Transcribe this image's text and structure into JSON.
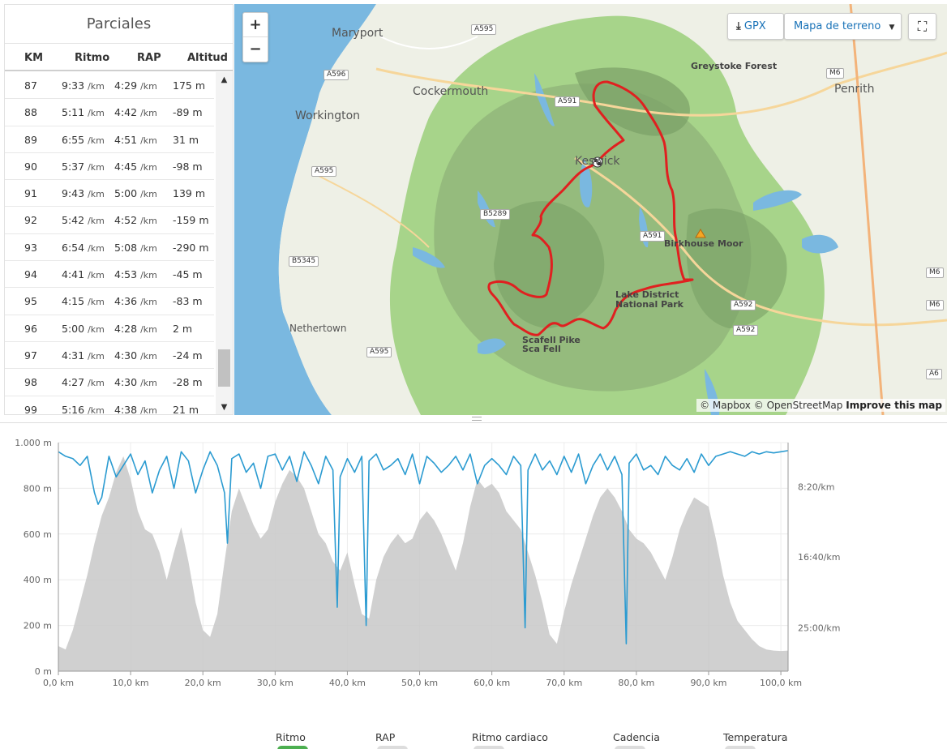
{
  "splits": {
    "title": "Parciales",
    "headers": {
      "km": "KM",
      "pace": "Ritmo",
      "gap": "RAP",
      "elev": "Altitud"
    },
    "pace_unit": "/km",
    "rows": [
      {
        "km": "87",
        "pace": "9:33",
        "gap": "4:29",
        "elev": "175 m"
      },
      {
        "km": "88",
        "pace": "5:11",
        "gap": "4:42",
        "elev": "-89 m"
      },
      {
        "km": "89",
        "pace": "6:55",
        "gap": "4:51",
        "elev": "31 m"
      },
      {
        "km": "90",
        "pace": "5:37",
        "gap": "4:45",
        "elev": "-98 m"
      },
      {
        "km": "91",
        "pace": "9:43",
        "gap": "5:00",
        "elev": "139 m"
      },
      {
        "km": "92",
        "pace": "5:42",
        "gap": "4:52",
        "elev": "-159 m"
      },
      {
        "km": "93",
        "pace": "6:54",
        "gap": "5:08",
        "elev": "-290 m"
      },
      {
        "km": "94",
        "pace": "4:41",
        "gap": "4:53",
        "elev": "-45 m"
      },
      {
        "km": "95",
        "pace": "4:15",
        "gap": "4:36",
        "elev": "-83 m"
      },
      {
        "km": "96",
        "pace": "5:00",
        "gap": "4:28",
        "elev": "2 m"
      },
      {
        "km": "97",
        "pace": "4:31",
        "gap": "4:30",
        "elev": "-24 m"
      },
      {
        "km": "98",
        "pace": "4:27",
        "gap": "4:30",
        "elev": "-28 m"
      },
      {
        "km": "99",
        "pace": "5:16",
        "gap": "4:38",
        "elev": "21 m"
      }
    ]
  },
  "map": {
    "controls": {
      "zoom_in": "+",
      "zoom_out": "−",
      "gpx": "GPX",
      "terrain": "Mapa de terreno",
      "fullscreen": "⛶"
    },
    "places": {
      "maryport": "Maryport",
      "cockermouth": "Cockermouth",
      "workington": "Workington",
      "penrith": "Penrith",
      "keswick": "Keswick",
      "nethertown": "Nethertown",
      "greystoke": "Greystoke Forest",
      "birkhouse": "Birkhouse Moor",
      "lake_district": "Lake District\nNational Park",
      "scafell": "Scafell Pike\nSca Fell"
    },
    "roads": [
      "A595",
      "A596",
      "A591",
      "A595",
      "B5289",
      "A591",
      "B5345",
      "A595",
      "A592",
      "A592",
      "M6",
      "M6",
      "M6",
      "A6"
    ],
    "attribution": {
      "mapbox": "© Mapbox",
      "osm": "© OpenStreetMap",
      "improve": "Improve this map"
    }
  },
  "chart_data": {
    "type": "area",
    "x_unit": "km",
    "xlim": [
      0,
      101
    ],
    "x_ticks": [
      "0,0 km",
      "10,0 km",
      "20,0 km",
      "30,0 km",
      "40,0 km",
      "50,0 km",
      "60,0 km",
      "70,0 km",
      "80,0 km",
      "90,0 km",
      "100,0 km"
    ],
    "y_left_ticks": [
      "0 m",
      "200 m",
      "400 m",
      "600 m",
      "800 m",
      "1.000 m"
    ],
    "ylim": [
      0,
      1000
    ],
    "y_right_ticks": [
      "8:20/km",
      "16:40/km",
      "25:00/km"
    ],
    "series": [
      {
        "name": "Altitud",
        "color": "#c8c8c8",
        "x": [
          0,
          1,
          2,
          3,
          4,
          5,
          6,
          7,
          8,
          9,
          10,
          11,
          12,
          13,
          14,
          15,
          16,
          17,
          18,
          19,
          20,
          21,
          22,
          23,
          24,
          25,
          26,
          27,
          28,
          29,
          30,
          31,
          32,
          33,
          34,
          35,
          36,
          37,
          38,
          39,
          40,
          41,
          42,
          43,
          44,
          45,
          46,
          47,
          48,
          49,
          50,
          51,
          52,
          53,
          54,
          55,
          56,
          57,
          58,
          59,
          60,
          61,
          62,
          63,
          64,
          65,
          66,
          67,
          68,
          69,
          70,
          71,
          72,
          73,
          74,
          75,
          76,
          77,
          78,
          79,
          80,
          81,
          82,
          83,
          84,
          85,
          86,
          87,
          88,
          89,
          90,
          91,
          92,
          93,
          94,
          95,
          96,
          97,
          98,
          99,
          100,
          101
        ],
        "y": [
          110,
          95,
          180,
          300,
          420,
          560,
          680,
          760,
          870,
          940,
          840,
          700,
          620,
          600,
          520,
          400,
          520,
          630,
          480,
          300,
          180,
          150,
          250,
          480,
          700,
          800,
          720,
          640,
          580,
          620,
          740,
          820,
          880,
          850,
          800,
          700,
          600,
          560,
          480,
          440,
          520,
          380,
          250,
          230,
          400,
          500,
          560,
          600,
          560,
          580,
          660,
          700,
          660,
          600,
          520,
          440,
          560,
          720,
          840,
          800,
          820,
          780,
          700,
          660,
          620,
          520,
          420,
          300,
          160,
          120,
          260,
          380,
          480,
          580,
          680,
          760,
          800,
          760,
          700,
          620,
          580,
          560,
          520,
          460,
          400,
          500,
          620,
          700,
          760,
          740,
          720,
          580,
          420,
          300,
          220,
          180,
          140,
          110,
          95,
          90,
          88,
          90
        ]
      },
      {
        "name": "Ritmo",
        "color": "#2b9bd1",
        "x": [
          0,
          1,
          2,
          3,
          4,
          5,
          5.5,
          6,
          7,
          8,
          9,
          10,
          11,
          12,
          13,
          14,
          15,
          16,
          17,
          18,
          19,
          20,
          21,
          22,
          23,
          23.4,
          24,
          25,
          26,
          27,
          28,
          29,
          30,
          31,
          32,
          33,
          34,
          35,
          36,
          37,
          38,
          38.6,
          39,
          40,
          41,
          42,
          42.6,
          43,
          44,
          45,
          46,
          47,
          48,
          49,
          50,
          51,
          52,
          53,
          54,
          55,
          56,
          57,
          58,
          59,
          60,
          61,
          62,
          63,
          64,
          64.6,
          65,
          66,
          67,
          68,
          69,
          70,
          71,
          72,
          73,
          74,
          75,
          76,
          77,
          78,
          78.6,
          79,
          80,
          81,
          82,
          83,
          84,
          85,
          86,
          87,
          88,
          89,
          90,
          91,
          92,
          93,
          94,
          95,
          96,
          97,
          98,
          99,
          100,
          101
        ],
        "y": [
          960,
          940,
          930,
          900,
          940,
          780,
          730,
          760,
          940,
          850,
          900,
          950,
          860,
          920,
          780,
          880,
          940,
          800,
          960,
          920,
          780,
          880,
          960,
          900,
          780,
          560,
          930,
          950,
          870,
          910,
          800,
          940,
          950,
          880,
          940,
          830,
          960,
          900,
          820,
          940,
          880,
          280,
          850,
          930,
          870,
          940,
          200,
          920,
          950,
          880,
          900,
          930,
          860,
          950,
          820,
          940,
          910,
          870,
          900,
          940,
          880,
          950,
          820,
          900,
          930,
          900,
          860,
          940,
          900,
          190,
          880,
          950,
          880,
          920,
          860,
          940,
          870,
          950,
          820,
          900,
          950,
          880,
          940,
          860,
          120,
          910,
          950,
          880,
          900,
          860,
          940,
          900,
          880,
          930,
          870,
          950,
          900,
          940,
          950,
          960,
          950,
          940,
          960,
          950,
          960,
          955,
          960,
          965
        ]
      }
    ]
  },
  "legend": {
    "items": [
      {
        "label": "Ritmo",
        "on": true
      },
      {
        "label": "RAP",
        "on": false
      },
      {
        "label": "Ritmo cardiaco",
        "on": false
      },
      {
        "label": "Cadencia",
        "on": false
      },
      {
        "label": "Temperatura",
        "on": false
      }
    ]
  },
  "colors": {
    "route": "#e02020",
    "water": "#7ab8e0",
    "park": "#a7d48a",
    "relief": "#6b8f5a",
    "accent": "#1a73b8"
  }
}
